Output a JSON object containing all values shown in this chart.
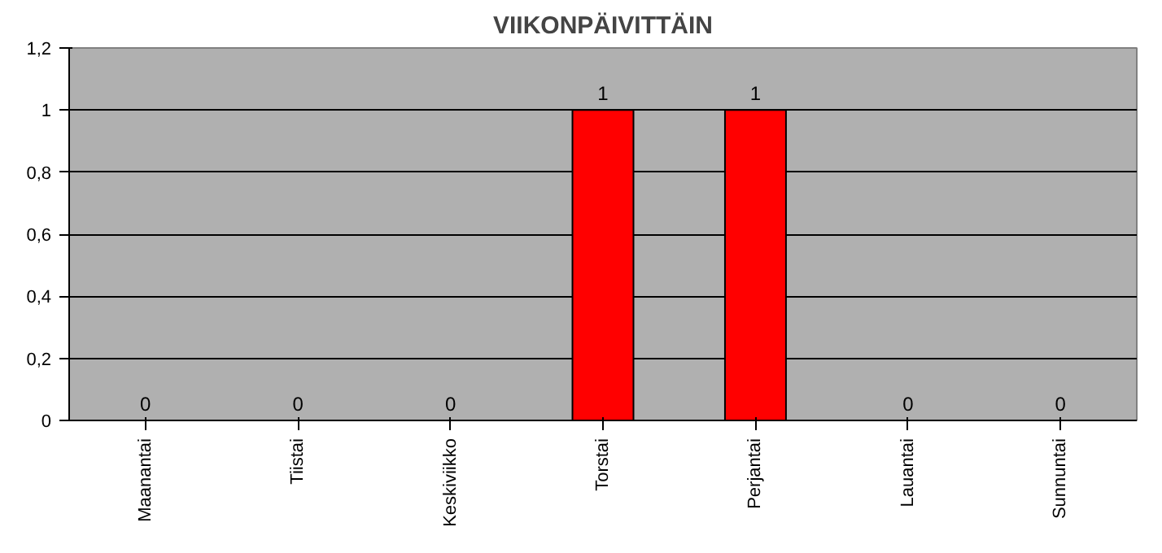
{
  "chart_data": {
    "type": "bar",
    "title": "VIIKONPÄIVITTÄIN",
    "categories": [
      "Maanantai",
      "Tiistai",
      "Keskiviikko",
      "Torstai",
      "Perjantai",
      "Lauantai",
      "Sunnuntai"
    ],
    "values": [
      0,
      0,
      0,
      1,
      1,
      0,
      0
    ],
    "color": "#ff0000",
    "ylim": [
      0,
      1.2
    ],
    "yticks": [
      0,
      {
        "value": 0.2,
        "label": "0,2"
      },
      {
        "value": 0.4,
        "label": "0,4"
      },
      {
        "value": 0.6,
        "label": "0,6"
      },
      {
        "value": 0.8,
        "label": "0,8"
      },
      1,
      {
        "value": 1.2,
        "label": "1,2"
      }
    ],
    "grid": "y",
    "data_labels": true
  }
}
